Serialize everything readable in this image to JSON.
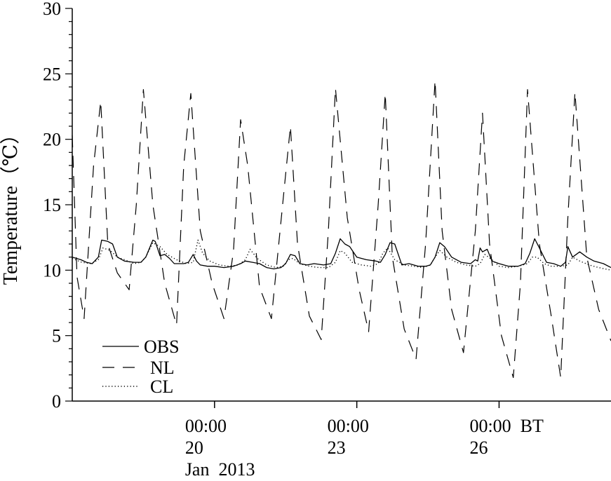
{
  "chart_data": {
    "type": "line",
    "ylabel": "Temperature（℃）",
    "ylim": [
      0,
      30
    ],
    "yticks": [
      0,
      5,
      10,
      15,
      20,
      25,
      30
    ],
    "xlim": [
      0,
      11.36
    ],
    "x_unit": "days from chart start",
    "xticks": [
      {
        "x": 3.0,
        "lines": [
          "00:00",
          "20",
          "Jan  2013"
        ]
      },
      {
        "x": 6.0,
        "lines": [
          "00:00",
          "23"
        ]
      },
      {
        "x": 9.0,
        "lines": [
          "00:00  BT",
          "26"
        ]
      }
    ],
    "legend_position": "bottom-left",
    "series": [
      {
        "name": "OBS",
        "style": "solid",
        "x": [
          0.0,
          0.18,
          0.3,
          0.42,
          0.55,
          0.62,
          0.75,
          0.85,
          0.95,
          1.1,
          1.3,
          1.45,
          1.55,
          1.7,
          1.75,
          1.85,
          1.95,
          2.05,
          2.15,
          2.25,
          2.35,
          2.45,
          2.55,
          2.62,
          2.7,
          2.85,
          3.0,
          3.2,
          3.4,
          3.55,
          3.65,
          3.8,
          3.95,
          4.1,
          4.25,
          4.4,
          4.5,
          4.6,
          4.7,
          4.8,
          4.95,
          5.1,
          5.3,
          5.45,
          5.55,
          5.65,
          5.75,
          5.85,
          6.0,
          6.2,
          6.4,
          6.5,
          6.6,
          6.7,
          6.8,
          6.95,
          7.1,
          7.3,
          7.45,
          7.55,
          7.65,
          7.75,
          7.85,
          8.0,
          8.2,
          8.4,
          8.5,
          8.55,
          8.6,
          8.65,
          8.75,
          8.85,
          9.0,
          9.2,
          9.4,
          9.55,
          9.65,
          9.75,
          9.85,
          10.0,
          10.15,
          10.3,
          10.4,
          10.45,
          10.55,
          10.7,
          10.85,
          11.0,
          11.2,
          11.36
        ],
        "y": [
          11.0,
          10.8,
          10.6,
          10.5,
          11.0,
          12.3,
          12.2,
          12.0,
          11.0,
          10.7,
          10.6,
          10.6,
          11.0,
          12.3,
          12.2,
          11.1,
          11.2,
          10.9,
          10.5,
          10.5,
          10.5,
          10.6,
          11.2,
          10.7,
          10.4,
          10.3,
          10.3,
          10.2,
          10.3,
          10.5,
          10.7,
          10.6,
          10.5,
          10.2,
          10.1,
          10.2,
          10.5,
          11.2,
          11.1,
          10.5,
          10.4,
          10.5,
          10.4,
          10.5,
          11.3,
          12.4,
          12.0,
          11.8,
          11.0,
          10.8,
          10.7,
          10.6,
          11.2,
          12.1,
          12.0,
          10.4,
          10.5,
          10.3,
          10.3,
          10.4,
          11.0,
          12.1,
          11.8,
          11.0,
          10.6,
          10.5,
          10.8,
          10.7,
          11.7,
          11.4,
          11.6,
          10.7,
          10.5,
          10.3,
          10.3,
          10.5,
          11.3,
          12.4,
          11.7,
          10.6,
          10.5,
          10.3,
          10.6,
          11.8,
          11.0,
          11.4,
          11.0,
          10.7,
          10.5,
          10.2
        ]
      },
      {
        "name": "NL",
        "style": "dashed",
        "x": [
          0.0,
          0.1,
          0.25,
          0.45,
          0.6,
          0.75,
          0.95,
          1.2,
          1.35,
          1.5,
          1.7,
          1.95,
          2.2,
          2.35,
          2.5,
          2.7,
          2.95,
          3.2,
          3.4,
          3.55,
          3.7,
          3.95,
          4.2,
          4.45,
          4.6,
          4.75,
          5.0,
          5.25,
          5.4,
          5.55,
          5.8,
          6.05,
          6.25,
          6.45,
          6.6,
          6.75,
          7.0,
          7.25,
          7.45,
          7.65,
          7.8,
          8.0,
          8.25,
          8.5,
          8.65,
          8.8,
          9.05,
          9.3,
          9.45,
          9.6,
          9.85,
          10.1,
          10.3,
          10.45,
          10.6,
          10.85,
          11.1,
          11.36
        ],
        "y": [
          20.3,
          9.5,
          6.3,
          18.0,
          22.9,
          12.0,
          9.8,
          8.5,
          15.0,
          23.8,
          15.0,
          9.0,
          5.8,
          18.0,
          23.5,
          13.0,
          9.0,
          6.3,
          11.5,
          21.5,
          18.0,
          8.7,
          6.3,
          15.5,
          21.0,
          12.0,
          6.5,
          4.7,
          13.0,
          23.9,
          14.0,
          8.5,
          5.3,
          15.0,
          23.5,
          11.0,
          5.5,
          3.2,
          12.0,
          24.5,
          13.0,
          7.0,
          3.7,
          13.0,
          22.0,
          12.0,
          5.0,
          1.8,
          9.0,
          23.8,
          12.0,
          6.5,
          1.8,
          14.0,
          23.6,
          11.0,
          7.0,
          4.6
        ]
      },
      {
        "name": "CL",
        "style": "dotted",
        "x": [
          0.0,
          0.2,
          0.4,
          0.55,
          0.65,
          0.8,
          0.95,
          1.1,
          1.3,
          1.45,
          1.55,
          1.7,
          1.85,
          2.0,
          2.2,
          2.4,
          2.55,
          2.65,
          2.75,
          2.9,
          3.1,
          3.3,
          3.5,
          3.65,
          3.75,
          3.9,
          4.1,
          4.3,
          4.45,
          4.55,
          4.65,
          4.8,
          5.0,
          5.2,
          5.4,
          5.55,
          5.65,
          5.75,
          5.9,
          6.1,
          6.3,
          6.45,
          6.55,
          6.65,
          6.8,
          7.0,
          7.2,
          7.4,
          7.55,
          7.65,
          7.75,
          7.9,
          8.1,
          8.3,
          8.5,
          8.6,
          8.7,
          8.85,
          9.0,
          9.2,
          9.4,
          9.6,
          9.7,
          9.8,
          9.95,
          10.1,
          10.3,
          10.45,
          10.55,
          10.7,
          10.9,
          11.1,
          11.36
        ],
        "y": [
          10.9,
          10.6,
          10.5,
          10.8,
          11.7,
          11.5,
          11.0,
          10.8,
          10.5,
          10.6,
          11.0,
          12.1,
          11.8,
          11.2,
          10.8,
          10.5,
          10.6,
          12.3,
          11.3,
          10.7,
          10.4,
          10.3,
          10.4,
          10.8,
          11.6,
          10.9,
          10.4,
          10.2,
          10.3,
          10.8,
          10.9,
          10.5,
          10.3,
          10.2,
          10.2,
          10.6,
          11.5,
          11.3,
          10.6,
          10.4,
          10.3,
          10.5,
          11.3,
          11.7,
          10.8,
          10.4,
          10.3,
          10.2,
          10.4,
          11.0,
          11.5,
          11.0,
          10.6,
          10.4,
          10.3,
          10.5,
          11.2,
          10.8,
          10.3,
          10.2,
          10.3,
          10.5,
          11.0,
          11.0,
          10.5,
          10.3,
          10.3,
          10.4,
          11.0,
          10.7,
          10.4,
          10.2,
          10.0
        ]
      }
    ]
  }
}
